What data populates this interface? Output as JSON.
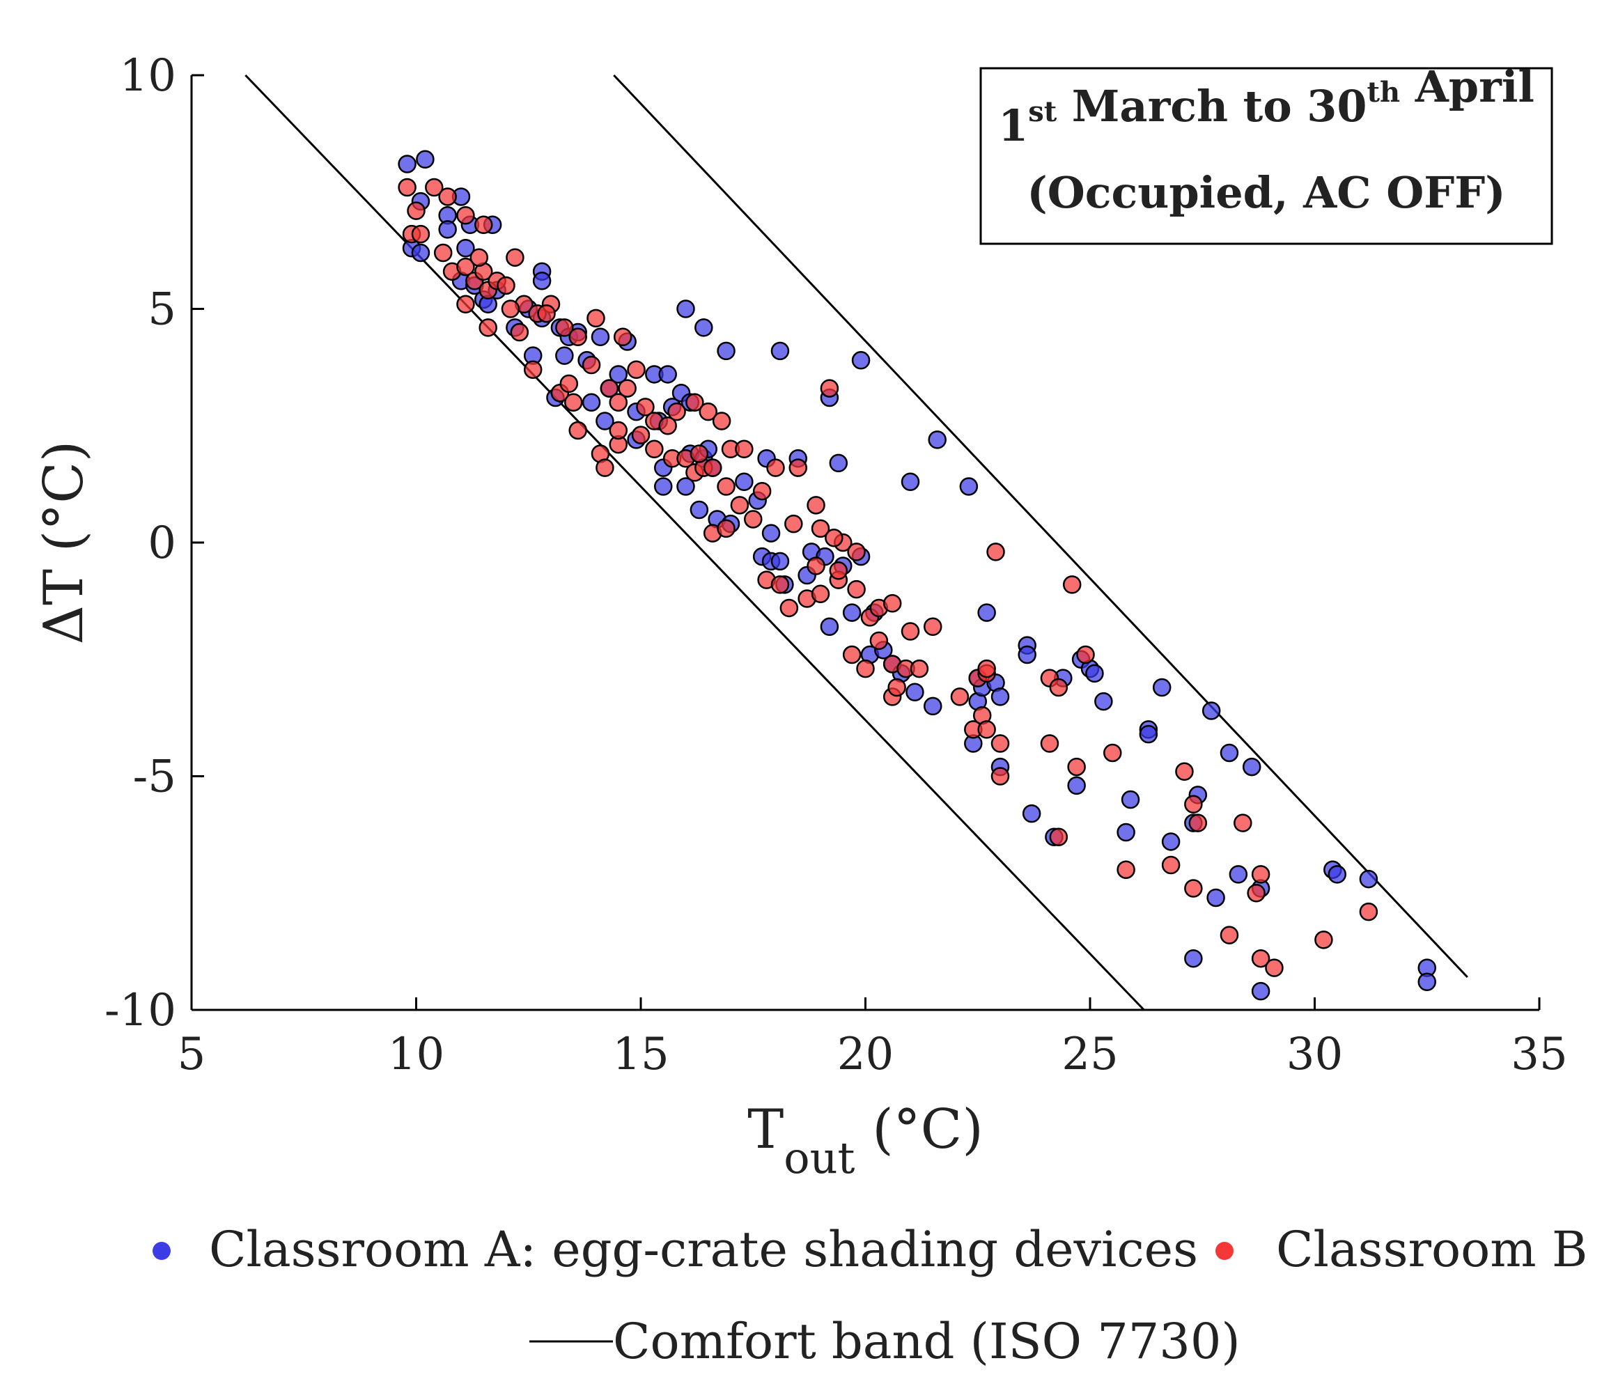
{
  "chart_data": {
    "type": "scatter",
    "title_lines": [
      {
        "parts": [
          {
            "text": "1"
          },
          {
            "text": "st",
            "sup": true
          },
          {
            "text": " March to 30"
          },
          {
            "text": "th",
            "sup": true
          },
          {
            "text": " April"
          }
        ]
      },
      {
        "parts": [
          {
            "text": "(Occupied, AC OFF)"
          }
        ]
      }
    ],
    "xlabel_main": "T",
    "xlabel_sub": "out",
    "xlabel_unit": " (°C)",
    "ylabel": "ΔT (°C)",
    "xlim": [
      5,
      35
    ],
    "ylim": [
      -10,
      10
    ],
    "xticks": [
      5,
      10,
      15,
      20,
      25,
      30,
      35
    ],
    "yticks": [
      -10,
      -5,
      0,
      5,
      10
    ],
    "grid": false,
    "legend_position": "bottom",
    "colors": {
      "series_a": "#3c3ce6",
      "series_b": "#f53737",
      "line": "#000000"
    },
    "legend": {
      "series_a": "Classroom A: egg-crate shading devices",
      "series_b": "Classroom B",
      "line": "Comfort band (ISO 7730)"
    },
    "comfort_band": [
      {
        "name": "lower",
        "x": [
          6.2,
          26.2
        ],
        "y": [
          10,
          -10
        ]
      },
      {
        "name": "upper",
        "x": [
          14.4,
          33.4
        ],
        "y": [
          10,
          -9.3
        ]
      }
    ],
    "series": [
      {
        "name": "Classroom A: egg-crate shading devices",
        "points": [
          [
            9.8,
            8.1
          ],
          [
            10.2,
            8.2
          ],
          [
            10.1,
            7.3
          ],
          [
            9.9,
            6.3
          ],
          [
            10.1,
            6.2
          ],
          [
            10.7,
            7.0
          ],
          [
            11.0,
            7.4
          ],
          [
            11.1,
            6.3
          ],
          [
            11.2,
            6.8
          ],
          [
            11.7,
            6.8
          ],
          [
            10.7,
            6.7
          ],
          [
            11.0,
            5.6
          ],
          [
            11.3,
            5.5
          ],
          [
            11.5,
            5.2
          ],
          [
            11.8,
            5.4
          ],
          [
            12.2,
            4.6
          ],
          [
            12.5,
            5.0
          ],
          [
            12.8,
            5.8
          ],
          [
            12.8,
            5.6
          ],
          [
            13.2,
            4.6
          ],
          [
            13.4,
            4.4
          ],
          [
            13.6,
            4.5
          ],
          [
            13.3,
            4.0
          ],
          [
            12.6,
            4.0
          ],
          [
            13.8,
            3.9
          ],
          [
            14.1,
            4.4
          ],
          [
            14.7,
            4.3
          ],
          [
            14.5,
            3.6
          ],
          [
            14.3,
            3.3
          ],
          [
            15.3,
            3.6
          ],
          [
            15.6,
            3.6
          ],
          [
            13.9,
            3.0
          ],
          [
            14.2,
            2.6
          ],
          [
            14.9,
            2.8
          ],
          [
            15.4,
            2.6
          ],
          [
            15.9,
            3.2
          ],
          [
            16.1,
            3.0
          ],
          [
            15.7,
            2.9
          ],
          [
            15.5,
            1.2
          ],
          [
            16.1,
            1.9
          ],
          [
            16.4,
            1.8
          ],
          [
            16.6,
            1.6
          ],
          [
            16.3,
            0.7
          ],
          [
            16.7,
            0.5
          ],
          [
            17.0,
            0.4
          ],
          [
            16.0,
            5.0
          ],
          [
            16.4,
            4.6
          ],
          [
            16.9,
            4.1
          ],
          [
            18.1,
            4.1
          ],
          [
            19.9,
            3.9
          ],
          [
            19.2,
            3.1
          ],
          [
            17.3,
            1.3
          ],
          [
            17.6,
            0.9
          ],
          [
            17.8,
            1.8
          ],
          [
            18.5,
            1.8
          ],
          [
            19.4,
            1.7
          ],
          [
            17.7,
            -0.3
          ],
          [
            17.9,
            -0.4
          ],
          [
            18.1,
            -0.4
          ],
          [
            18.8,
            -0.2
          ],
          [
            19.1,
            -0.3
          ],
          [
            19.5,
            -0.5
          ],
          [
            19.9,
            -0.3
          ],
          [
            18.7,
            -0.7
          ],
          [
            19.7,
            -1.5
          ],
          [
            20.2,
            -1.5
          ],
          [
            19.2,
            -1.8
          ],
          [
            21.6,
            2.2
          ],
          [
            21.0,
            1.3
          ],
          [
            22.3,
            1.2
          ],
          [
            22.7,
            -1.5
          ],
          [
            20.1,
            -2.4
          ],
          [
            20.6,
            -2.6
          ],
          [
            20.8,
            -2.8
          ],
          [
            21.1,
            -3.2
          ],
          [
            21.5,
            -3.5
          ],
          [
            22.5,
            -2.9
          ],
          [
            22.5,
            -3.4
          ],
          [
            22.6,
            -3.1
          ],
          [
            22.9,
            -3.0
          ],
          [
            23.0,
            -3.3
          ],
          [
            22.4,
            -4.3
          ],
          [
            23.0,
            -4.8
          ],
          [
            23.6,
            -2.2
          ],
          [
            23.6,
            -2.4
          ],
          [
            24.4,
            -2.9
          ],
          [
            24.8,
            -2.5
          ],
          [
            25.0,
            -2.7
          ],
          [
            25.1,
            -2.8
          ],
          [
            25.3,
            -3.4
          ],
          [
            24.7,
            -5.2
          ],
          [
            23.7,
            -5.8
          ],
          [
            24.2,
            -6.3
          ],
          [
            25.9,
            -5.5
          ],
          [
            25.8,
            -6.2
          ],
          [
            26.3,
            -4.0
          ],
          [
            26.3,
            -4.1
          ],
          [
            26.6,
            -3.1
          ],
          [
            26.8,
            -6.4
          ],
          [
            27.4,
            -5.4
          ],
          [
            27.3,
            -6.0
          ],
          [
            27.7,
            -3.6
          ],
          [
            28.1,
            -4.5
          ],
          [
            28.6,
            -4.8
          ],
          [
            28.3,
            -7.1
          ],
          [
            27.8,
            -7.6
          ],
          [
            27.3,
            -8.9
          ],
          [
            28.8,
            -7.4
          ],
          [
            28.8,
            -9.6
          ],
          [
            30.4,
            -7.0
          ],
          [
            30.5,
            -7.1
          ],
          [
            31.2,
            -7.2
          ],
          [
            32.5,
            -9.1
          ],
          [
            32.5,
            -9.4
          ],
          [
            12.8,
            4.8
          ],
          [
            11.6,
            5.1
          ],
          [
            14.9,
            2.2
          ],
          [
            15.5,
            1.6
          ],
          [
            16.0,
            1.2
          ],
          [
            18.2,
            -0.9
          ],
          [
            20.4,
            -2.3
          ],
          [
            17.9,
            0.2
          ],
          [
            16.5,
            2.0
          ],
          [
            13.1,
            3.1
          ]
        ]
      },
      {
        "name": "Classroom B",
        "points": [
          [
            9.8,
            7.6
          ],
          [
            10.0,
            7.1
          ],
          [
            10.4,
            7.6
          ],
          [
            10.7,
            7.4
          ],
          [
            11.1,
            7.0
          ],
          [
            11.5,
            6.8
          ],
          [
            9.9,
            6.6
          ],
          [
            10.1,
            6.6
          ],
          [
            10.6,
            6.2
          ],
          [
            10.8,
            5.8
          ],
          [
            11.1,
            5.9
          ],
          [
            11.3,
            5.6
          ],
          [
            11.5,
            5.8
          ],
          [
            11.6,
            5.4
          ],
          [
            11.8,
            5.6
          ],
          [
            12.0,
            5.5
          ],
          [
            12.2,
            6.1
          ],
          [
            12.4,
            5.1
          ],
          [
            12.7,
            4.9
          ],
          [
            12.3,
            4.5
          ],
          [
            11.6,
            4.6
          ],
          [
            11.1,
            5.1
          ],
          [
            13.0,
            5.1
          ],
          [
            12.9,
            4.9
          ],
          [
            13.3,
            4.6
          ],
          [
            13.6,
            4.4
          ],
          [
            14.0,
            4.8
          ],
          [
            14.6,
            4.4
          ],
          [
            13.9,
            3.8
          ],
          [
            14.3,
            3.3
          ],
          [
            14.7,
            3.3
          ],
          [
            14.9,
            3.7
          ],
          [
            14.5,
            3.0
          ],
          [
            13.2,
            3.2
          ],
          [
            13.5,
            3.0
          ],
          [
            12.6,
            3.7
          ],
          [
            13.6,
            2.4
          ],
          [
            14.1,
            1.9
          ],
          [
            14.2,
            1.6
          ],
          [
            14.5,
            2.1
          ],
          [
            14.5,
            2.4
          ],
          [
            15.0,
            2.3
          ],
          [
            15.3,
            2.6
          ],
          [
            15.6,
            2.5
          ],
          [
            15.8,
            2.8
          ],
          [
            16.2,
            3.0
          ],
          [
            16.5,
            2.8
          ],
          [
            16.8,
            2.6
          ],
          [
            15.3,
            2.0
          ],
          [
            15.7,
            1.8
          ],
          [
            16.0,
            1.8
          ],
          [
            16.2,
            1.5
          ],
          [
            16.4,
            1.6
          ],
          [
            16.6,
            1.6
          ],
          [
            16.9,
            1.2
          ],
          [
            17.0,
            2.0
          ],
          [
            17.3,
            2.0
          ],
          [
            16.6,
            0.2
          ],
          [
            16.9,
            0.3
          ],
          [
            17.2,
            0.8
          ],
          [
            17.5,
            0.5
          ],
          [
            17.8,
            -0.8
          ],
          [
            18.1,
            -0.9
          ],
          [
            18.3,
            -1.4
          ],
          [
            18.7,
            -1.2
          ],
          [
            19.0,
            -1.1
          ],
          [
            19.4,
            -0.8
          ],
          [
            18.9,
            -0.5
          ],
          [
            19.4,
            -0.6
          ],
          [
            19.5,
            0.0
          ],
          [
            19.8,
            -0.2
          ],
          [
            19.0,
            0.3
          ],
          [
            19.3,
            0.1
          ],
          [
            18.5,
            1.6
          ],
          [
            18.0,
            1.6
          ],
          [
            18.9,
            0.8
          ],
          [
            19.2,
            3.3
          ],
          [
            19.8,
            -1.0
          ],
          [
            20.1,
            -1.6
          ],
          [
            19.7,
            -2.4
          ],
          [
            20.0,
            -2.7
          ],
          [
            20.3,
            -2.1
          ],
          [
            20.6,
            -2.6
          ],
          [
            20.9,
            -2.7
          ],
          [
            20.3,
            -1.4
          ],
          [
            20.6,
            -1.3
          ],
          [
            21.5,
            -1.8
          ],
          [
            21.2,
            -2.7
          ],
          [
            20.6,
            -3.3
          ],
          [
            20.7,
            -3.1
          ],
          [
            22.1,
            -3.3
          ],
          [
            22.5,
            -2.9
          ],
          [
            22.7,
            -2.8
          ],
          [
            22.7,
            -2.7
          ],
          [
            22.9,
            -0.2
          ],
          [
            24.6,
            -0.9
          ],
          [
            22.4,
            -4.0
          ],
          [
            22.6,
            -3.7
          ],
          [
            22.7,
            -4.0
          ],
          [
            23.0,
            -4.3
          ],
          [
            23.0,
            -5.0
          ],
          [
            24.1,
            -2.9
          ],
          [
            24.3,
            -3.1
          ],
          [
            24.9,
            -2.4
          ],
          [
            24.1,
            -4.3
          ],
          [
            24.7,
            -4.8
          ],
          [
            24.3,
            -6.3
          ],
          [
            25.5,
            -4.5
          ],
          [
            25.8,
            -7.0
          ],
          [
            26.8,
            -6.9
          ],
          [
            27.1,
            -4.9
          ],
          [
            27.3,
            -5.6
          ],
          [
            27.4,
            -6.0
          ],
          [
            27.3,
            -7.4
          ],
          [
            28.1,
            -8.4
          ],
          [
            28.4,
            -6.0
          ],
          [
            28.8,
            -7.1
          ],
          [
            28.8,
            -8.9
          ],
          [
            29.1,
            -9.1
          ],
          [
            28.7,
            -7.5
          ],
          [
            30.2,
            -8.5
          ],
          [
            31.2,
            -7.9
          ],
          [
            12.1,
            5.0
          ],
          [
            11.4,
            6.1
          ],
          [
            13.4,
            3.4
          ],
          [
            15.1,
            2.9
          ],
          [
            16.3,
            1.9
          ],
          [
            17.7,
            1.1
          ],
          [
            18.4,
            0.4
          ],
          [
            21.0,
            -1.9
          ]
        ]
      }
    ]
  }
}
